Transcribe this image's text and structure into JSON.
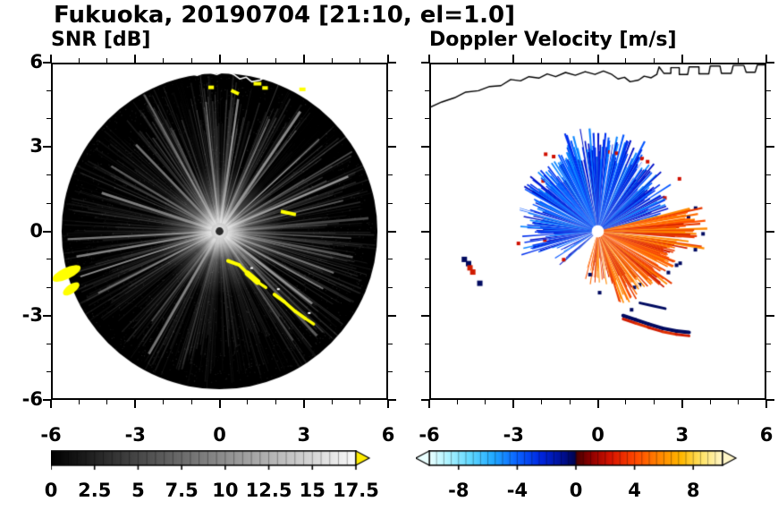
{
  "title": "Fukuoka, 20190704 [21:10, el=1.0]",
  "chart_data": [
    {
      "type": "heatmap",
      "title": "SNR [dB]",
      "xlabel": "",
      "ylabel": "",
      "xlim": [
        -6,
        6
      ],
      "ylim": [
        -6,
        6
      ],
      "x_ticks": [
        -6,
        -3,
        0,
        3,
        6
      ],
      "y_ticks": [
        6,
        3,
        0,
        -3,
        -6
      ],
      "x_tick_labels": [
        "-6",
        "-3",
        "0",
        "3",
        "6"
      ],
      "y_tick_labels": [
        "6",
        "3",
        "0",
        "-3",
        "-6"
      ],
      "minor_tick_step": 1,
      "colorbar": {
        "range": [
          0,
          17.5
        ],
        "tick_values": [
          0,
          2.5,
          5,
          7.5,
          10,
          12.5,
          15,
          17.5
        ],
        "tick_labels": [
          "0",
          "2.5",
          "5",
          "7.5",
          "10",
          "12.5",
          "15",
          "17.5"
        ],
        "cells": 35,
        "gradient": [
          [
            0,
            "#000000"
          ],
          [
            1,
            "#fafafa"
          ]
        ],
        "over_arrow": "#ffec00"
      },
      "features": {
        "scan_disk": {
          "center": [
            0,
            0
          ],
          "radius": 5.62,
          "color": "#000000"
        },
        "center_glow": {
          "radius": 2.3
        },
        "center_dot": {
          "radius": 0.14,
          "color": "#2a2a2a"
        },
        "ray_count": 560,
        "bright_rays_deg": [
          8,
          15,
          24,
          34,
          47,
          59,
          67,
          76,
          85,
          93,
          101,
          110,
          119,
          128,
          137,
          146,
          210,
          217,
          243,
          252,
          260,
          267,
          288,
          301,
          316,
          331,
          346,
          354
        ],
        "dark_wedges_deg": [
          [
            38,
            47
          ],
          [
            13,
            17
          ],
          [
            55,
            58
          ],
          [
            343,
            347
          ]
        ],
        "echo_color": "#ffff00",
        "echo_arc": [
          [
            -0.15,
            -0.85
          ],
          [
            0.3,
            -1.05
          ],
          [
            0.7,
            -1.2
          ],
          [
            1.0,
            -1.5
          ],
          [
            1.35,
            -1.8
          ],
          [
            1.65,
            -2.0
          ],
          [
            1.95,
            -2.25
          ],
          [
            2.3,
            -2.5
          ],
          [
            2.7,
            -2.85
          ],
          [
            3.05,
            -3.1
          ],
          [
            3.35,
            -3.3
          ],
          [
            3.6,
            -3.45
          ]
        ],
        "edge_blobs": [
          [
            -5.45,
            -1.5,
            0.2,
            0.55,
            65
          ],
          [
            -5.28,
            -2.05,
            0.16,
            0.34,
            55
          ]
        ],
        "spot_dashes": [
          [
            2.45,
            0.65,
            0.55,
            12
          ],
          [
            0.55,
            4.95,
            0.3,
            25
          ],
          [
            1.35,
            5.25,
            0.28,
            0
          ],
          [
            1.62,
            5.1,
            0.2,
            0
          ],
          [
            2.95,
            5.05,
            0.22,
            0
          ],
          [
            -0.3,
            5.12,
            0.2,
            0
          ]
        ],
        "coastline_color": "#ffffff"
      }
    },
    {
      "type": "heatmap",
      "title": "Doppler Velocity [m/s]",
      "xlabel": "",
      "ylabel": "",
      "xlim": [
        -6,
        6
      ],
      "ylim": [
        -6,
        6
      ],
      "x_ticks": [
        -6,
        -3,
        0,
        3,
        6
      ],
      "y_ticks": [
        6,
        3,
        0,
        -3,
        -6
      ],
      "x_tick_labels": [
        "-6",
        "-3",
        "0",
        "3",
        "6"
      ],
      "y_tick_labels": [],
      "minor_tick_step": 1,
      "colorbar": {
        "range": [
          -10,
          10
        ],
        "tick_values": [
          -8,
          -4,
          0,
          4,
          8
        ],
        "tick_labels": [
          "-8",
          "-4",
          "0",
          "4",
          "8"
        ],
        "cells": 40,
        "gradient": [
          [
            0,
            "#eaffff"
          ],
          [
            0.06,
            "#b0f4ff"
          ],
          [
            0.14,
            "#60d8ff"
          ],
          [
            0.22,
            "#20a8ff"
          ],
          [
            0.3,
            "#0a62ff"
          ],
          [
            0.38,
            "#0026e0"
          ],
          [
            0.46,
            "#000e8c"
          ],
          [
            0.497,
            "#000550"
          ],
          [
            0.503,
            "#4c0000"
          ],
          [
            0.55,
            "#8c0000"
          ],
          [
            0.62,
            "#d81400"
          ],
          [
            0.7,
            "#ff4600"
          ],
          [
            0.78,
            "#ff8200"
          ],
          [
            0.86,
            "#ffb800"
          ],
          [
            0.93,
            "#ffe468"
          ],
          [
            1,
            "#fff6c8"
          ]
        ],
        "under_arrow": "#eaffff",
        "over_arrow": "#fff6c8"
      },
      "features": {
        "coastline_color": "#000000",
        "center_dot": {
          "radius": 0.2,
          "color": "#ffffff"
        },
        "navy": "#000a60",
        "red": "#d01c00",
        "blue_fan": {
          "colors": [
            "#0010c8",
            "#0030ee",
            "#0054ff",
            "#0b86ff"
          ],
          "sectors": [
            {
              "az": [
                340,
                390
              ],
              "len": [
                2.5,
                3.7
              ],
              "gap": 0.08
            },
            {
              "az": [
                300,
                340
              ],
              "len": [
                2.1,
                3.1
              ],
              "gap": 0.1
            },
            {
              "az": [
                268,
                300
              ],
              "len": [
                1.9,
                2.9
              ],
              "gap": 0.12
            },
            {
              "az": [
                248,
                268
              ],
              "len": [
                1.5,
                3.0
              ],
              "gap": 0.22
            },
            {
              "az": [
                226,
                248
              ],
              "len": [
                0.7,
                1.9
              ],
              "gap": 0.55
            },
            {
              "az": [
                30,
                58
              ],
              "len": [
                2.0,
                3.2
              ],
              "gap": 0.12
            },
            {
              "az": [
                58,
                76
              ],
              "len": [
                1.5,
                2.7
              ],
              "gap": 0.3
            }
          ],
          "gap_spokes_deg": [
            351,
            9,
            22,
            33,
            286,
            299
          ],
          "speck_color": "#d01000",
          "speck_prob": 0.05
        },
        "orange_fan": {
          "colors": [
            "#ff5200",
            "#ff6c00",
            "#e83a00",
            "#d01c00",
            "#ff8a00"
          ],
          "sectors": [
            {
              "az": [
                76,
                100
              ],
              "len": [
                2.7,
                3.9
              ],
              "gap": 0.05
            },
            {
              "az": [
                100,
                135
              ],
              "len": [
                2.3,
                3.3
              ],
              "gap": 0.05
            },
            {
              "az": [
                135,
                165
              ],
              "len": [
                1.7,
                2.8
              ],
              "gap": 0.08
            },
            {
              "az": [
                165,
                196
              ],
              "len": [
                0.9,
                2.0
              ],
              "gap": 0.2
            }
          ],
          "gap_spokes_deg": [
            95,
            118,
            143,
            169
          ],
          "speck_color": "#000a60",
          "speck_prob": 0.14
        },
        "isolated_specks": [
          {
            "color": "#000a60",
            "points": [
              [
                -4.75,
                -1.0
              ],
              [
                -4.6,
                -1.15
              ],
              [
                -4.2,
                -1.85
              ]
            ]
          },
          {
            "color": "#d01c00",
            "points": [
              [
                -4.55,
                -1.3
              ],
              [
                -4.45,
                -1.45
              ]
            ]
          }
        ],
        "bottom_arc": [
          [
            0.9,
            -3.0
          ],
          [
            1.35,
            -3.15
          ],
          [
            1.8,
            -3.3
          ],
          [
            2.3,
            -3.45
          ],
          [
            2.8,
            -3.55
          ],
          [
            3.25,
            -3.6
          ]
        ],
        "sub_arc": [
          [
            1.5,
            -2.55
          ],
          [
            1.95,
            -2.65
          ],
          [
            2.4,
            -2.75
          ]
        ]
      }
    }
  ],
  "coastline": [
    [
      -6.0,
      4.4
    ],
    [
      -5.55,
      4.6
    ],
    [
      -5.1,
      4.75
    ],
    [
      -4.7,
      4.95
    ],
    [
      -4.25,
      5.0
    ],
    [
      -3.85,
      5.15
    ],
    [
      -3.45,
      5.18
    ],
    [
      -3.1,
      5.4
    ],
    [
      -2.75,
      5.35
    ],
    [
      -2.45,
      5.5
    ],
    [
      -2.1,
      5.45
    ],
    [
      -1.8,
      5.6
    ],
    [
      -1.5,
      5.5
    ],
    [
      -1.15,
      5.65
    ],
    [
      -0.8,
      5.55
    ],
    [
      -0.45,
      5.68
    ],
    [
      -0.1,
      5.58
    ],
    [
      0.2,
      5.7
    ],
    [
      0.5,
      5.58
    ],
    [
      0.72,
      5.42
    ],
    [
      0.95,
      5.48
    ],
    [
      1.15,
      5.32
    ],
    [
      1.45,
      5.38
    ],
    [
      1.65,
      5.52
    ],
    [
      1.9,
      5.46
    ],
    [
      2.1,
      5.58
    ],
    [
      2.18,
      5.85
    ],
    [
      2.35,
      5.62
    ],
    [
      2.6,
      5.62
    ],
    [
      2.6,
      5.82
    ],
    [
      2.9,
      5.82
    ],
    [
      2.9,
      5.58
    ],
    [
      3.2,
      5.58
    ],
    [
      3.25,
      5.85
    ],
    [
      3.6,
      5.85
    ],
    [
      3.6,
      5.6
    ],
    [
      3.95,
      5.6
    ],
    [
      4.0,
      5.88
    ],
    [
      4.35,
      5.88
    ],
    [
      4.4,
      5.62
    ],
    [
      4.75,
      5.62
    ],
    [
      4.82,
      5.9
    ],
    [
      5.2,
      5.9
    ],
    [
      5.28,
      5.66
    ],
    [
      5.6,
      5.66
    ],
    [
      5.68,
      5.92
    ],
    [
      6.0,
      5.92
    ]
  ]
}
